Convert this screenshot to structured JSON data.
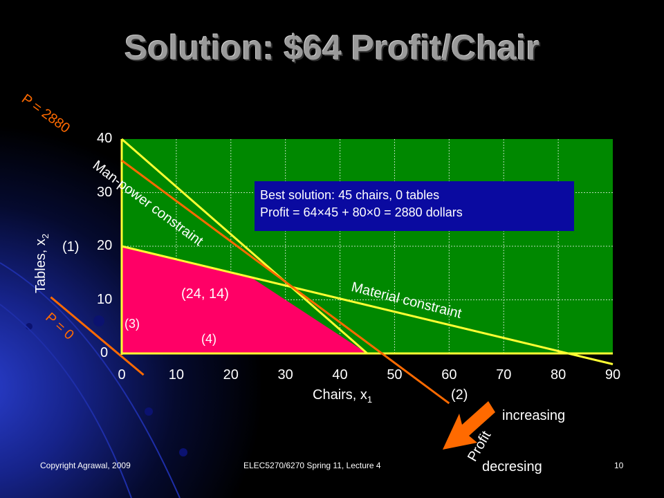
{
  "slide": {
    "title": "Solution: $64 Profit/Chair",
    "footer_left": "Copyright Agrawal, 2009",
    "footer_center": "ELEC5270/6270  Spring 11, Lecture 4",
    "slide_number": "10"
  },
  "chart_data": {
    "type": "line",
    "xlabel": "Chairs, x",
    "xlabel_sub": "1",
    "ylabel": "Tables, x",
    "ylabel_sub": "2",
    "xlim": [
      0,
      90
    ],
    "ylim": [
      0,
      40
    ],
    "x_ticks": [
      "0",
      "10",
      "20",
      "30",
      "40",
      "50",
      "60",
      "70",
      "80",
      "90"
    ],
    "y_ticks": [
      "0",
      "10",
      "20",
      "30",
      "40"
    ],
    "grid": true,
    "series": [
      {
        "name": "Man-power constraint",
        "x": [
          0,
          45
        ],
        "y": [
          40,
          0
        ],
        "color": "#ffff33"
      },
      {
        "name": "Material constraint",
        "x": [
          0,
          90
        ],
        "y": [
          20,
          -2
        ],
        "color": "#ffff33"
      },
      {
        "name": "P = 2880",
        "x": [
          0,
          60
        ],
        "y": [
          36,
          -9.3
        ],
        "color": "#ff6a00"
      },
      {
        "name": "P = 0",
        "x": [
          -13,
          4
        ],
        "y": [
          10.5,
          -4
        ],
        "color": "#ff6a00"
      }
    ],
    "feasible_region": {
      "x": [
        0,
        0,
        24,
        45,
        0
      ],
      "y": [
        0,
        20,
        14,
        0,
        0
      ],
      "color": "#ff0066"
    },
    "annotations": {
      "point": "(24, 14)",
      "c1": "(1)",
      "c2": "(2)",
      "c3": "(3)",
      "c4": "(4)",
      "profit_arrow": "Profit",
      "increasing": "increasing",
      "decreasing": "decresing"
    },
    "info_box": {
      "line1": "Best solution: 45 chairs, 0 tables",
      "line2": "Profit = 64×45 + 80×0 = 2880 dollars"
    },
    "colors": {
      "plot_bg": "#008800",
      "grid": "#bbddbb",
      "axis": "#ffff33"
    }
  }
}
